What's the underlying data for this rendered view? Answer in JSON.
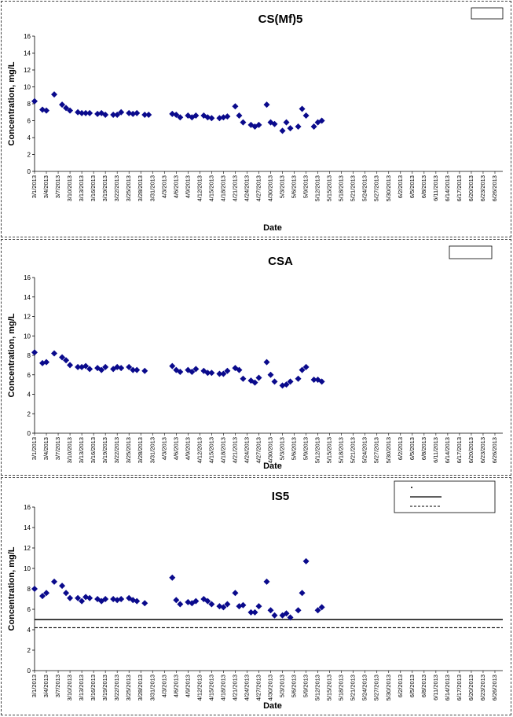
{
  "chart_data": [
    {
      "type": "scatter",
      "title": "CS(Mf)5",
      "xlabel": "Date",
      "ylabel": "Concentration, mg/L",
      "ylim": [
        0,
        16
      ],
      "yticks": [
        0,
        2,
        4,
        6,
        8,
        10,
        12,
        14,
        16
      ],
      "x_tick_labels": [
        "3/1/2013",
        "3/4/2013",
        "3/7/2013",
        "3/10/2013",
        "3/13/2013",
        "3/16/2013",
        "3/19/2013",
        "3/22/2013",
        "3/25/2013",
        "3/28/2013",
        "3/31/2013",
        "4/3/2013",
        "4/6/2013",
        "4/9/2013",
        "4/12/2013",
        "4/15/2013",
        "4/18/2013",
        "4/21/2013",
        "4/24/2013",
        "4/27/2013",
        "4/30/2013",
        "5/3/2013",
        "5/6/2013",
        "5/9/2013",
        "5/12/2013",
        "5/15/2013",
        "5/18/2013",
        "5/21/2013",
        "5/24/2013",
        "5/27/2013",
        "5/30/2013",
        "6/2/2013",
        "6/5/2013",
        "6/8/2013",
        "6/11/2013",
        "6/14/2013",
        "6/17/2013",
        "6/20/2013",
        "6/23/2013",
        "6/26/2013"
      ],
      "xlim": [
        "3/1/2013",
        "6/28/2013"
      ],
      "grid": false,
      "legend_position": "top-right",
      "legend_entries": [],
      "reference_lines": [],
      "series": [
        {
          "marker": "diamond",
          "color": "#0a0a8c",
          "points": [
            [
              "3/1/2013",
              8.3
            ],
            [
              "3/3/2013",
              7.3
            ],
            [
              "3/4/2013",
              7.2
            ],
            [
              "3/6/2013",
              9.1
            ],
            [
              "3/8/2013",
              7.9
            ],
            [
              "3/9/2013",
              7.5
            ],
            [
              "3/10/2013",
              7.2
            ],
            [
              "3/12/2013",
              7.0
            ],
            [
              "3/13/2013",
              6.9
            ],
            [
              "3/14/2013",
              6.9
            ],
            [
              "3/15/2013",
              6.9
            ],
            [
              "3/17/2013",
              6.8
            ],
            [
              "3/18/2013",
              6.9
            ],
            [
              "3/19/2013",
              6.7
            ],
            [
              "3/21/2013",
              6.7
            ],
            [
              "3/22/2013",
              6.7
            ],
            [
              "3/23/2013",
              7.0
            ],
            [
              "3/25/2013",
              6.9
            ],
            [
              "3/26/2013",
              6.8
            ],
            [
              "3/27/2013",
              6.9
            ],
            [
              "3/29/2013",
              6.7
            ],
            [
              "3/30/2013",
              6.7
            ],
            [
              "4/5/2013",
              6.8
            ],
            [
              "4/6/2013",
              6.7
            ],
            [
              "4/7/2013",
              6.4
            ],
            [
              "4/9/2013",
              6.6
            ],
            [
              "4/10/2013",
              6.4
            ],
            [
              "4/11/2013",
              6.6
            ],
            [
              "4/13/2013",
              6.6
            ],
            [
              "4/14/2013",
              6.4
            ],
            [
              "4/15/2013",
              6.3
            ],
            [
              "4/17/2013",
              6.3
            ],
            [
              "4/18/2013",
              6.4
            ],
            [
              "4/19/2013",
              6.5
            ],
            [
              "4/21/2013",
              7.7
            ],
            [
              "4/22/2013",
              6.6
            ],
            [
              "4/23/2013",
              5.8
            ],
            [
              "4/25/2013",
              5.5
            ],
            [
              "4/26/2013",
              5.3
            ],
            [
              "4/27/2013",
              5.5
            ],
            [
              "4/29/2013",
              7.9
            ],
            [
              "4/30/2013",
              5.8
            ],
            [
              "5/1/2013",
              5.6
            ],
            [
              "5/3/2013",
              4.8
            ],
            [
              "5/4/2013",
              5.8
            ],
            [
              "5/5/2013",
              5.1
            ],
            [
              "5/7/2013",
              5.3
            ],
            [
              "5/8/2013",
              7.4
            ],
            [
              "5/9/2013",
              6.6
            ],
            [
              "5/11/2013",
              5.3
            ],
            [
              "5/12/2013",
              5.8
            ],
            [
              "5/13/2013",
              6.0
            ]
          ]
        }
      ]
    },
    {
      "type": "scatter",
      "title": "CSA",
      "xlabel": "Date",
      "ylabel": "Concentration, mg/L",
      "ylim": [
        0,
        16
      ],
      "yticks": [
        0,
        2,
        4,
        6,
        8,
        10,
        12,
        14,
        16
      ],
      "x_tick_labels": [
        "3/1/2013",
        "3/4/2013",
        "3/7/2013",
        "3/10/2013",
        "3/13/2013",
        "3/16/2013",
        "3/19/2013",
        "3/22/2013",
        "3/25/2013",
        "3/28/2013",
        "3/31/2013",
        "4/3/2013",
        "4/6/2013",
        "4/9/2013",
        "4/12/2013",
        "4/15/2013",
        "4/18/2013",
        "4/21/2013",
        "4/24/2013",
        "4/27/2013",
        "4/30/2013",
        "5/3/2013",
        "5/6/2013",
        "5/9/2013",
        "5/12/2013",
        "5/15/2013",
        "5/18/2013",
        "5/21/2013",
        "5/24/2013",
        "5/27/2013",
        "5/30/2013",
        "6/2/2013",
        "6/5/2013",
        "6/8/2013",
        "6/11/2013",
        "6/14/2013",
        "6/17/2013",
        "6/20/2013",
        "6/23/2013",
        "6/26/2013"
      ],
      "xlim": [
        "3/1/2013",
        "6/28/2013"
      ],
      "grid": false,
      "legend_position": "top-right",
      "legend_entries": [],
      "reference_lines": [],
      "series": [
        {
          "marker": "diamond",
          "color": "#0a0a8c",
          "points": [
            [
              "3/1/2013",
              8.3
            ],
            [
              "3/3/2013",
              7.2
            ],
            [
              "3/4/2013",
              7.3
            ],
            [
              "3/6/2013",
              8.2
            ],
            [
              "3/8/2013",
              7.8
            ],
            [
              "3/9/2013",
              7.5
            ],
            [
              "3/10/2013",
              7.0
            ],
            [
              "3/12/2013",
              6.8
            ],
            [
              "3/13/2013",
              6.8
            ],
            [
              "3/14/2013",
              6.9
            ],
            [
              "3/15/2013",
              6.6
            ],
            [
              "3/17/2013",
              6.7
            ],
            [
              "3/18/2013",
              6.5
            ],
            [
              "3/19/2013",
              6.8
            ],
            [
              "3/21/2013",
              6.6
            ],
            [
              "3/22/2013",
              6.8
            ],
            [
              "3/23/2013",
              6.7
            ],
            [
              "3/25/2013",
              6.8
            ],
            [
              "3/26/2013",
              6.5
            ],
            [
              "3/27/2013",
              6.5
            ],
            [
              "3/29/2013",
              6.4
            ],
            [
              "4/5/2013",
              6.9
            ],
            [
              "4/6/2013",
              6.5
            ],
            [
              "4/7/2013",
              6.3
            ],
            [
              "4/9/2013",
              6.5
            ],
            [
              "4/10/2013",
              6.3
            ],
            [
              "4/11/2013",
              6.6
            ],
            [
              "4/13/2013",
              6.4
            ],
            [
              "4/14/2013",
              6.2
            ],
            [
              "4/15/2013",
              6.2
            ],
            [
              "4/17/2013",
              6.1
            ],
            [
              "4/18/2013",
              6.1
            ],
            [
              "4/19/2013",
              6.4
            ],
            [
              "4/21/2013",
              6.7
            ],
            [
              "4/22/2013",
              6.5
            ],
            [
              "4/23/2013",
              5.6
            ],
            [
              "4/25/2013",
              5.4
            ],
            [
              "4/26/2013",
              5.2
            ],
            [
              "4/27/2013",
              5.7
            ],
            [
              "4/29/2013",
              7.3
            ],
            [
              "4/30/2013",
              6.0
            ],
            [
              "5/1/2013",
              5.3
            ],
            [
              "5/3/2013",
              4.9
            ],
            [
              "5/4/2013",
              5.0
            ],
            [
              "5/5/2013",
              5.3
            ],
            [
              "5/7/2013",
              5.6
            ],
            [
              "5/8/2013",
              6.5
            ],
            [
              "5/9/2013",
              6.8
            ],
            [
              "5/11/2013",
              5.5
            ],
            [
              "5/12/2013",
              5.5
            ],
            [
              "5/13/2013",
              5.3
            ]
          ]
        }
      ]
    },
    {
      "type": "scatter",
      "title": "IS5",
      "xlabel": "Date",
      "ylabel": "Concentration, mg/L",
      "ylim": [
        0,
        16
      ],
      "yticks": [
        0,
        2,
        4,
        6,
        8,
        10,
        12,
        14,
        16
      ],
      "x_tick_labels": [
        "3/1/2013",
        "3/4/2013",
        "3/7/2013",
        "3/10/2013",
        "3/13/2013",
        "3/16/2013",
        "3/19/2013",
        "3/22/2013",
        "3/25/2013",
        "3/28/2013",
        "3/31/2013",
        "4/3/2013",
        "4/6/2013",
        "4/9/2013",
        "4/12/2013",
        "4/15/2013",
        "4/18/2013",
        "4/21/2013",
        "4/24/2013",
        "4/27/2013",
        "4/30/2013",
        "5/3/2013",
        "5/6/2013",
        "5/9/2013",
        "5/12/2013",
        "5/15/2013",
        "5/18/2013",
        "5/21/2013",
        "5/24/2013",
        "5/27/2013",
        "5/30/2013",
        "6/2/2013",
        "6/5/2013",
        "6/8/2013",
        "6/11/2013",
        "6/14/2013",
        "6/17/2013",
        "6/20/2013",
        "6/23/2013",
        "6/26/2013"
      ],
      "xlim": [
        "3/1/2013",
        "6/28/2013"
      ],
      "grid": false,
      "legend_position": "top-right",
      "legend_entries": [],
      "reference_lines": [
        {
          "y": 5.0,
          "style": "solid",
          "color": "#000000"
        },
        {
          "y": 4.2,
          "style": "dashed",
          "color": "#000000"
        }
      ],
      "series": [
        {
          "marker": "diamond",
          "color": "#0a0a8c",
          "points": [
            [
              "3/1/2013",
              8.0
            ],
            [
              "3/3/2013",
              7.3
            ],
            [
              "3/4/2013",
              7.6
            ],
            [
              "3/6/2013",
              8.7
            ],
            [
              "3/8/2013",
              8.3
            ],
            [
              "3/9/2013",
              7.6
            ],
            [
              "3/10/2013",
              7.1
            ],
            [
              "3/12/2013",
              7.1
            ],
            [
              "3/13/2013",
              6.8
            ],
            [
              "3/14/2013",
              7.2
            ],
            [
              "3/15/2013",
              7.1
            ],
            [
              "3/17/2013",
              7.0
            ],
            [
              "3/18/2013",
              6.8
            ],
            [
              "3/19/2013",
              7.0
            ],
            [
              "3/21/2013",
              7.0
            ],
            [
              "3/22/2013",
              6.9
            ],
            [
              "3/23/2013",
              7.0
            ],
            [
              "3/25/2013",
              7.1
            ],
            [
              "3/26/2013",
              6.9
            ],
            [
              "3/27/2013",
              6.8
            ],
            [
              "3/29/2013",
              6.6
            ],
            [
              "4/5/2013",
              9.1
            ],
            [
              "4/6/2013",
              6.9
            ],
            [
              "4/7/2013",
              6.5
            ],
            [
              "4/9/2013",
              6.7
            ],
            [
              "4/10/2013",
              6.6
            ],
            [
              "4/11/2013",
              6.8
            ],
            [
              "4/13/2013",
              7.0
            ],
            [
              "4/14/2013",
              6.8
            ],
            [
              "4/15/2013",
              6.5
            ],
            [
              "4/17/2013",
              6.3
            ],
            [
              "4/18/2013",
              6.2
            ],
            [
              "4/19/2013",
              6.5
            ],
            [
              "4/21/2013",
              7.6
            ],
            [
              "4/22/2013",
              6.3
            ],
            [
              "4/23/2013",
              6.4
            ],
            [
              "4/25/2013",
              5.7
            ],
            [
              "4/26/2013",
              5.7
            ],
            [
              "4/27/2013",
              6.3
            ],
            [
              "4/29/2013",
              8.7
            ],
            [
              "4/30/2013",
              5.9
            ],
            [
              "5/1/2013",
              5.4
            ],
            [
              "5/3/2013",
              5.4
            ],
            [
              "5/4/2013",
              5.6
            ],
            [
              "5/5/2013",
              5.2
            ],
            [
              "5/7/2013",
              5.9
            ],
            [
              "5/8/2013",
              7.6
            ],
            [
              "5/9/2013",
              10.7
            ],
            [
              "5/12/2013",
              5.9
            ],
            [
              "5/13/2013",
              6.2
            ]
          ]
        }
      ]
    }
  ]
}
